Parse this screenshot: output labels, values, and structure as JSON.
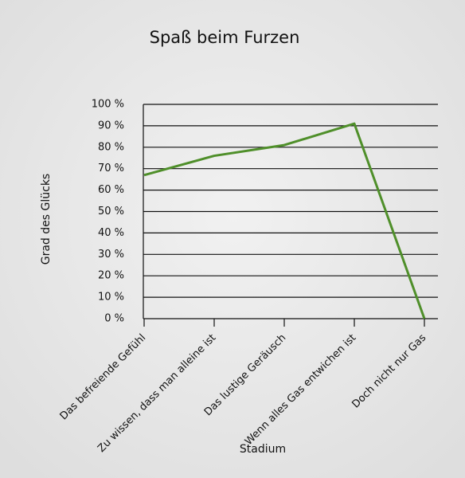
{
  "chart_data": {
    "type": "line",
    "title": "Spaß beim Furzen",
    "x_label": "Stadium",
    "y_label": "Grad des Glücks",
    "categories": [
      "Das befreiende Gefühl",
      "Zu wissen, dass man alleine ist",
      "Das lustige Geräusch",
      "Wenn alles Gas entwichen ist",
      "Doch nicht nur Gas"
    ],
    "series": [
      {
        "name": "Grad des Glücks",
        "color": "#4f8f2a",
        "values": [
          67,
          76,
          81,
          91,
          0
        ]
      }
    ],
    "ylim": [
      0,
      100
    ],
    "yticks": [
      {
        "value": 0,
        "label": "0 %"
      },
      {
        "value": 10,
        "label": "10 %"
      },
      {
        "value": 20,
        "label": "20 %"
      },
      {
        "value": 30,
        "label": "30 %"
      },
      {
        "value": 40,
        "label": "40 %"
      },
      {
        "value": 50,
        "label": "50 %"
      },
      {
        "value": 60,
        "label": "60 %"
      },
      {
        "value": 70,
        "label": "70 %"
      },
      {
        "value": 80,
        "label": "80 %"
      },
      {
        "value": 90,
        "label": "90 %"
      },
      {
        "value": 100,
        "label": "100 %"
      }
    ],
    "grid": true
  }
}
